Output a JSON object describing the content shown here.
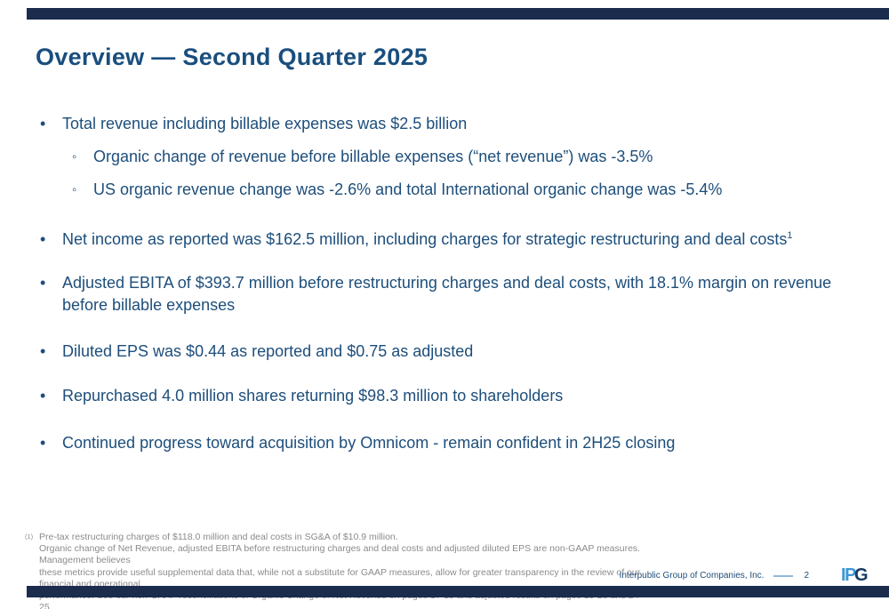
{
  "slide": {
    "title": "Overview — Second Quarter 2025"
  },
  "bullets": [
    {
      "level": 1,
      "text": "Total revenue including billable expenses was $2.5 billion"
    },
    {
      "level": 2,
      "text": "Organic change of revenue before billable expenses (“net revenue”) was -3.5%"
    },
    {
      "level": 2,
      "text": "US organic revenue change was -2.6% and total International organic change was -5.4%"
    },
    {
      "level": 1,
      "text": "Net income as reported was $162.5 million, including charges for strategic restructuring and deal costs",
      "sup": "1"
    },
    {
      "level": 1,
      "text": "Adjusted EBITA of $393.7 million before restructuring charges and deal costs, with 18.1% margin on revenue before billable expenses"
    },
    {
      "level": 1,
      "text": "Diluted EPS was $0.44 as reported and $0.75 as adjusted"
    },
    {
      "level": 1,
      "text": "Repurchased 4.0 million shares returning $98.3 million to shareholders"
    },
    {
      "level": 1,
      "text": "Continued progress toward acquisition by Omnicom - remain confident in 2H25 closing"
    }
  ],
  "markers": {
    "level1": "•",
    "level2": "◦"
  },
  "footnote": {
    "marker": "(1)",
    "lines": [
      "Pre-tax restructuring charges of $118.0 million and deal costs in SG&A of $10.9 million.",
      "Organic change of Net Revenue, adjusted EBITA before restructuring charges and deal costs and adjusted diluted EPS are non-GAAP measures. Management believes",
      "these metrics provide useful supplemental data that, while not a substitute for GAAP measures, allow for greater transparency in the review of our financial and operational",
      "performance. See our non-GAAP reconciliations of Organic Change of Net Revenue on pages 17-18 and adjusted results on pages 19-20 and 24-25."
    ]
  },
  "footer": {
    "company": "Interpublic Group of Companies, Inc.",
    "page": "2",
    "logo_part1": "IP",
    "logo_part2": "G"
  },
  "colors": {
    "body_text_navy": "#1d4e7b",
    "title_navy": "#194e7e",
    "bar_navy": "#1b2c4c",
    "footnote_gray": "#8b8b8b",
    "footer_dash_blue": "#8fb8d9",
    "logo_light_blue": "#3a97d3",
    "logo_dark_blue": "#163a63"
  }
}
